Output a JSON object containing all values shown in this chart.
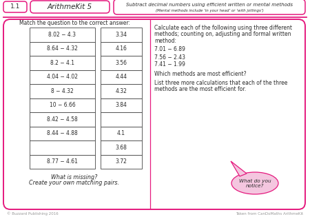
{
  "title_num": "1.1",
  "title_main": "ArithmeKit 5",
  "title_desc": "Subtract decimal numbers using efficient written or mental methods",
  "title_sub": "(Mental methods include ‘in your head’ or ‘with jottings’)",
  "left_heading": "Match the question to the correct answer:",
  "left_questions": [
    "8.02 − 4.3",
    "8.64 − 4.32",
    "8.2 − 4.1",
    "4.04 − 4.02",
    "8 − 4.32",
    "10 − 6.66",
    "8.42 − 4.58",
    "8.44 − 4.88",
    "",
    "8.77 − 4.61"
  ],
  "left_answers": [
    "3.34",
    "4.16",
    "3.56",
    "4.44",
    "4.32",
    "3.84",
    "",
    "4.1",
    "3.68",
    "3.72"
  ],
  "left_footer1": "What is missing?",
  "left_footer2": "Create your own matching pairs.",
  "right_intro1": "Calculate each of the following using three different",
  "right_intro2": "methods; counting on, adjusting and formal written",
  "right_intro3": "method:",
  "right_calcs": [
    "7.01 − 6.89",
    "7.56 − 2.43",
    "7.41 − 1.99"
  ],
  "right_q1": "Which methods are most efficient?",
  "right_q2a": "List three more calculations that each of the three",
  "right_q2b": "methods are the most efficient for.",
  "bubble_text": "What do you\nnotice?",
  "footer_left": "© Buzzard Publishing 2016",
  "footer_right": "Taken from CanDoMaths ArithmeKit",
  "pink": "#e5197e",
  "light_pink": "#f4c6df",
  "bg": "#ffffff",
  "text_color": "#2a2a2a",
  "gray": "#666666"
}
